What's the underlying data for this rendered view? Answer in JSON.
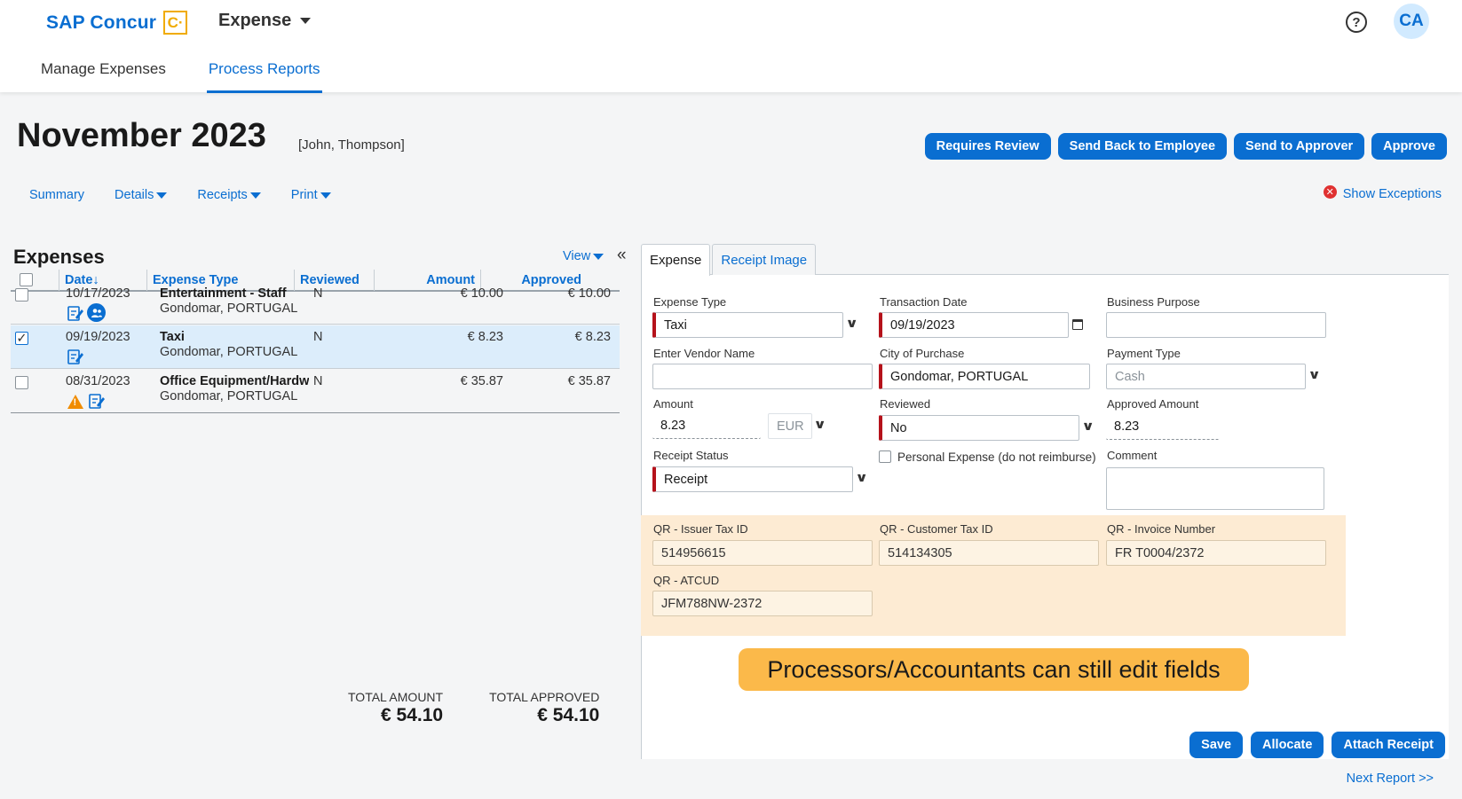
{
  "header": {
    "brand": "SAP Concur",
    "brand_logo": "C·",
    "app": "Expense",
    "help": "?",
    "avatar": "CA",
    "nav": [
      "Manage Expenses",
      "Process Reports"
    ]
  },
  "report": {
    "title": "November 2023",
    "owner": "[John, Thompson]",
    "actions": [
      "Requires Review",
      "Send Back to Employee",
      "Send to Approver",
      "Approve"
    ],
    "subnav": [
      "Summary",
      "Details",
      "Receipts",
      "Print"
    ],
    "show_exceptions": "Show Exceptions"
  },
  "expenses": {
    "heading": "Expenses",
    "view": "View",
    "collapse": "«",
    "columns": {
      "date": "Date↓",
      "type": "Expense Type",
      "reviewed": "Reviewed",
      "amount": "Amount",
      "approved": "Approved"
    },
    "rows": [
      {
        "date": "10/17/2023",
        "type": "Entertainment - Staff",
        "location": "Gondomar, PORTUGAL",
        "reviewed": "N",
        "amount": "€ 10.00",
        "approved": "€ 10.00",
        "checked": false
      },
      {
        "date": "09/19/2023",
        "type": "Taxi",
        "location": "Gondomar, PORTUGAL",
        "reviewed": "N",
        "amount": "€ 8.23",
        "approved": "€ 8.23",
        "checked": true
      },
      {
        "date": "08/31/2023",
        "type": "Office Equipment/Hardware",
        "location": "Gondomar, PORTUGAL",
        "reviewed": "N",
        "amount": "€ 35.87",
        "approved": "€ 35.87",
        "checked": false
      }
    ],
    "total_amount_label": "TOTAL AMOUNT",
    "total_amount": "€ 54.10",
    "total_approved_label": "TOTAL APPROVED",
    "total_approved": "€ 54.10"
  },
  "detail": {
    "tabs": [
      "Expense",
      "Receipt Image"
    ],
    "expense_type_label": "Expense Type",
    "expense_type": "Taxi",
    "transaction_date_label": "Transaction Date",
    "transaction_date": "09/19/2023",
    "business_purpose_label": "Business Purpose",
    "business_purpose": "",
    "vendor_label": "Enter Vendor Name",
    "vendor": "",
    "city_label": "City of Purchase",
    "city": "Gondomar, PORTUGAL",
    "payment_type_label": "Payment Type",
    "payment_type": "Cash",
    "amount_label": "Amount",
    "amount": "8.23",
    "currency": "EUR",
    "reviewed_label": "Reviewed",
    "reviewed": "No",
    "approved_amount_label": "Approved Amount",
    "approved_amount": "8.23",
    "receipt_status_label": "Receipt Status",
    "receipt_status": "Receipt",
    "personal_expense_label": "Personal Expense (do not reimburse)",
    "comment_label": "Comment",
    "comment": "",
    "qr_issuer_label": "QR - Issuer Tax ID",
    "qr_issuer": "514956615",
    "qr_customer_label": "QR - Customer Tax ID",
    "qr_customer": "514134305",
    "qr_invoice_label": "QR - Invoice Number",
    "qr_invoice": "FR T0004/2372",
    "qr_atcud_label": "QR - ATCUD",
    "qr_atcud": "JFM788NW-2372",
    "buttons": [
      "Save",
      "Allocate",
      "Attach Receipt"
    ]
  },
  "callout": "Processors/Accountants can still edit fields",
  "next_report": "Next Report >>",
  "colors": {
    "accent": "#0a6ed1",
    "brand_logo": "#f0ab00",
    "required": "#b5121b",
    "qr_band": "#fdebd3",
    "callout": "#fbb94a"
  }
}
